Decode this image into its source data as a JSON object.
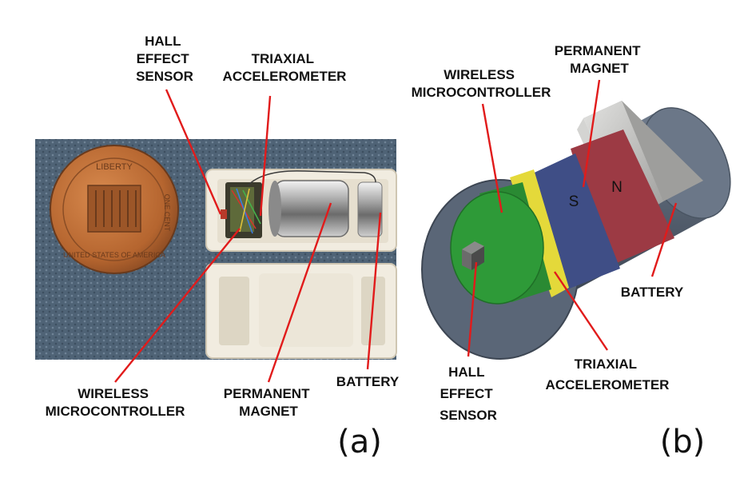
{
  "panel_a": {
    "caption": "(a)",
    "labels": {
      "hall_sensor": [
        "HALL",
        "EFFECT",
        "SENSOR"
      ],
      "accelerometer": [
        "TRIAXIAL",
        "ACCELEROMETER"
      ],
      "microcontroller": [
        "WIRELESS",
        "MICROCONTROLLER"
      ],
      "magnet": [
        "PERMANENT",
        "MAGNET"
      ],
      "battery": [
        "BATTERY"
      ]
    },
    "coin": {
      "text_top": "LIBERTY",
      "text_bottom": "UNITED STATES OF AMERICA",
      "text_side": "ONE CENT"
    }
  },
  "panel_b": {
    "caption": "(b)",
    "labels": {
      "microcontroller": [
        "WIRELESS",
        "MICROCONTROLLER"
      ],
      "magnet": [
        "PERMANENT",
        "MAGNET"
      ],
      "battery": [
        "BATTERY"
      ],
      "hall_sensor": [
        "HALL",
        "EFFECT",
        "SENSOR"
      ],
      "accelerometer": [
        "TRIAXIAL",
        "ACCELEROMETER"
      ]
    },
    "poles": {
      "south": "S",
      "north": "N"
    }
  },
  "colors": {
    "arrow": "#e11b1b",
    "fabric": "#4f6376",
    "coin": "#b5652f",
    "housing": "#f1ece0",
    "pcb_green": "#2e9a38",
    "accel_yellow": "#e4d93a",
    "magnet_blue": "#3f4e86",
    "magnet_red": "#9c3a44",
    "battery_gray": "#c6c6c4",
    "shell": "#5a6677"
  }
}
